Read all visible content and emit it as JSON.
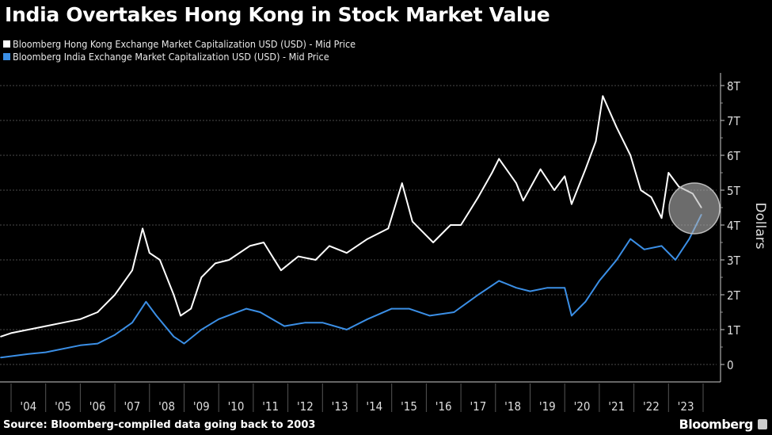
{
  "chart_data": {
    "type": "line",
    "title": "India Overtakes Hong Kong in Stock Market Value",
    "ylabel": "Dollars",
    "xlabel": "",
    "ylim": [
      0,
      8
    ],
    "y_ticks": [
      "0",
      "1T",
      "2T",
      "3T",
      "4T",
      "5T",
      "6T",
      "7T",
      "8T"
    ],
    "y_tick_values": [
      0,
      1,
      2,
      3,
      4,
      5,
      6,
      7,
      8
    ],
    "x_ticks": [
      "'04",
      "'05",
      "'06",
      "'07",
      "'08",
      "'09",
      "'10",
      "'11",
      "'12",
      "'13",
      "'14",
      "'15",
      "'16",
      "'17",
      "'18",
      "'19",
      "'20",
      "'21",
      "'22",
      "'23"
    ],
    "x_tick_years": [
      2004,
      2005,
      2006,
      2007,
      2008,
      2009,
      2010,
      2011,
      2012,
      2013,
      2014,
      2015,
      2016,
      2017,
      2018,
      2019,
      2020,
      2021,
      2022,
      2023
    ],
    "grid": "horizontal dotted",
    "legend_position": "top-left",
    "series": [
      {
        "name": "Bloomberg Hong Kong Exchange Market Capitalization USD (USD) - Mid Price",
        "color": "#ffffff",
        "x": [
          2003.7,
          2004.0,
          2004.5,
          2005.0,
          2005.5,
          2006.0,
          2006.5,
          2007.0,
          2007.5,
          2007.8,
          2008.0,
          2008.3,
          2008.7,
          2008.9,
          2009.2,
          2009.5,
          2009.9,
          2010.3,
          2010.9,
          2011.3,
          2011.8,
          2012.3,
          2012.8,
          2013.2,
          2013.7,
          2014.3,
          2014.9,
          2015.3,
          2015.6,
          2015.9,
          2016.2,
          2016.7,
          2017.0,
          2017.5,
          2017.9,
          2018.1,
          2018.6,
          2018.8,
          2019.3,
          2019.7,
          2020.0,
          2020.2,
          2020.6,
          2020.9,
          2021.1,
          2021.5,
          2021.9,
          2022.2,
          2022.5,
          2022.8,
          2023.0,
          2023.3,
          2023.7,
          2023.95
        ],
        "values": [
          0.8,
          0.9,
          1.0,
          1.1,
          1.2,
          1.3,
          1.5,
          2.0,
          2.7,
          3.9,
          3.2,
          3.0,
          2.0,
          1.4,
          1.6,
          2.5,
          2.9,
          3.0,
          3.4,
          3.5,
          2.7,
          3.1,
          3.0,
          3.4,
          3.2,
          3.6,
          3.9,
          5.2,
          4.1,
          3.8,
          3.5,
          4.0,
          4.0,
          4.8,
          5.5,
          5.9,
          5.2,
          4.7,
          5.6,
          5.0,
          5.4,
          4.6,
          5.6,
          6.4,
          7.7,
          6.8,
          6.0,
          5.0,
          4.8,
          4.2,
          5.5,
          5.1,
          4.9,
          4.5
        ]
      },
      {
        "name": "Bloomberg India Exchange Market Capitalization USD (USD) - Mid Price",
        "color": "#3b8fe6",
        "x": [
          2003.7,
          2004.5,
          2005.0,
          2006.0,
          2006.5,
          2007.0,
          2007.5,
          2007.9,
          2008.2,
          2008.7,
          2009.0,
          2009.5,
          2010.0,
          2010.8,
          2011.2,
          2011.9,
          2012.5,
          2013.0,
          2013.7,
          2014.3,
          2015.0,
          2015.5,
          2016.1,
          2016.8,
          2017.5,
          2018.1,
          2018.6,
          2019.0,
          2019.5,
          2020.0,
          2020.2,
          2020.6,
          2021.0,
          2021.5,
          2021.9,
          2022.3,
          2022.8,
          2023.2,
          2023.6,
          2023.95
        ],
        "values": [
          0.2,
          0.3,
          0.35,
          0.55,
          0.6,
          0.85,
          1.2,
          1.8,
          1.4,
          0.8,
          0.6,
          1.0,
          1.3,
          1.6,
          1.5,
          1.1,
          1.2,
          1.2,
          1.0,
          1.3,
          1.6,
          1.6,
          1.4,
          1.5,
          2.0,
          2.4,
          2.2,
          2.1,
          2.2,
          2.2,
          1.4,
          1.8,
          2.4,
          3.0,
          3.6,
          3.3,
          3.4,
          3.0,
          3.6,
          4.3
        ]
      }
    ],
    "annotation": "highlight-circle"
  },
  "source": "Source: Bloomberg-compiled data going back to 2003",
  "brand": "Bloomberg",
  "colors": {
    "background": "#000000",
    "grid": "#555555",
    "circle": "#9a9a9a"
  }
}
